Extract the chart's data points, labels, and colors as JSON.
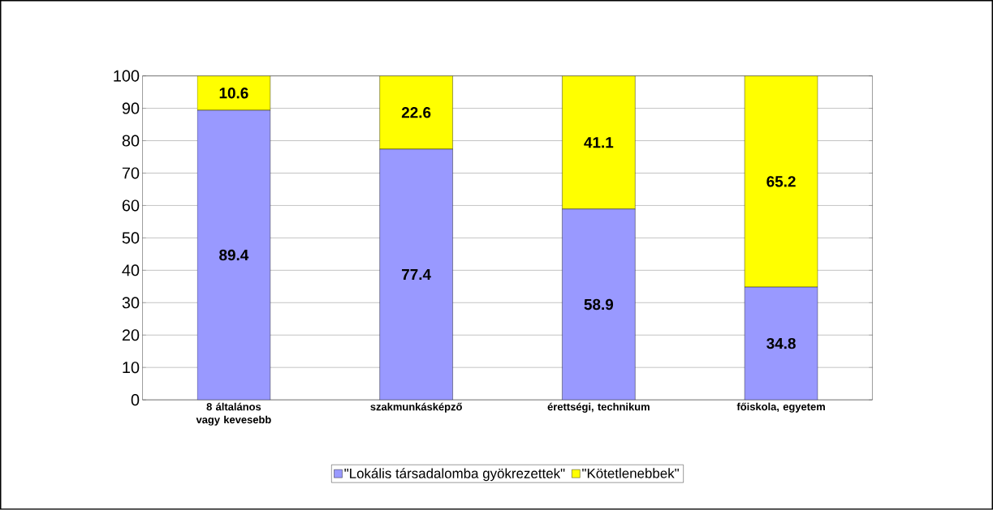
{
  "chart_data": {
    "type": "bar",
    "stacked": true,
    "categories": [
      "8 általános vagy kevesebb",
      "szakmunkásképző",
      "érettségi, technikum",
      "főiskola, egyetem"
    ],
    "series": [
      {
        "name": "\"Lokális társadalomba gyökrezettek\"",
        "color": "#9999ff",
        "values": [
          89.4,
          77.4,
          58.9,
          34.8
        ]
      },
      {
        "name": "\"Kötetlenebbek\"",
        "color": "#ffff00",
        "values": [
          10.6,
          22.6,
          41.1,
          65.2
        ]
      }
    ],
    "ylim": [
      0,
      100
    ],
    "yticks": [
      0,
      10,
      20,
      30,
      40,
      50,
      60,
      70,
      80,
      90,
      100
    ],
    "grid": "y",
    "legend": "bottom",
    "data_labels": true
  }
}
